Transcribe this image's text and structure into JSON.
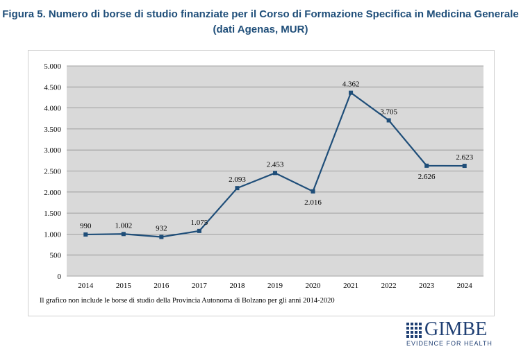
{
  "title_line1": "Figura 5. Numero di borse di studio finanziate per il Corso di Formazione Specifica in Medicina Generale",
  "title_line2": "(dati Agenas, MUR)",
  "note": "Il grafico non include le borse di studio della Provincia Autonoma di Bolzano per gli anni 2014-2020",
  "logo": {
    "name": "GIMBE",
    "tagline": "EVIDENCE FOR HEALTH"
  },
  "colors": {
    "title": "#1f4e79",
    "line": "#1f4e79",
    "plot_bg": "#d9d9d9",
    "logo": "#1f3f73"
  },
  "chart_data": {
    "type": "line",
    "categories": [
      "2014",
      "2015",
      "2016",
      "2017",
      "2018",
      "2019",
      "2020",
      "2021",
      "2022",
      "2023",
      "2024"
    ],
    "series": [
      {
        "values": [
          990,
          1002,
          932,
          1075,
          2093,
          2453,
          2016,
          4362,
          3705,
          2626,
          2623
        ],
        "labels": [
          "990",
          "1.002",
          "932",
          "1.075",
          "2.093",
          "2.453",
          "2.016",
          "4.362",
          "3.705",
          "2.626",
          "2.623"
        ],
        "label_positions": [
          "above",
          "above",
          "above",
          "above",
          "above",
          "above",
          "below",
          "above",
          "above",
          "below",
          "above"
        ]
      }
    ],
    "ylim": [
      0,
      5000
    ],
    "yticks": [
      0,
      500,
      1000,
      1500,
      2000,
      2500,
      3000,
      3500,
      4000,
      4500,
      5000
    ],
    "ytick_labels": [
      "0",
      "500",
      "1.000",
      "1.500",
      "2.000",
      "2.500",
      "3.000",
      "3.500",
      "4.000",
      "4.500",
      "5.000"
    ],
    "grid": true,
    "legend": "none",
    "xlabel": "",
    "ylabel": ""
  }
}
